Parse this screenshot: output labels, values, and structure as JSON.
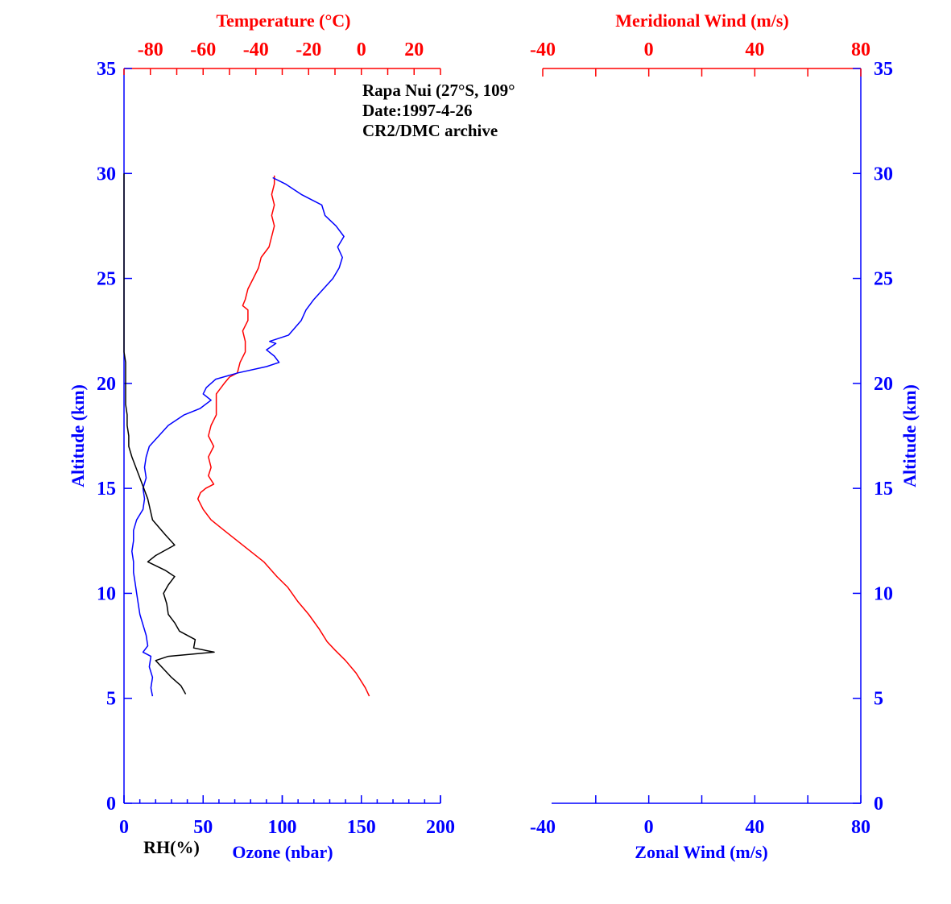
{
  "chart_data": [
    {
      "type": "line",
      "panel": "left",
      "annotation_lines": [
        "Rapa Nui (27°S, 109°",
        "Date:1997-4-26",
        "CR2/DMC archive"
      ],
      "ylabel": "Altitude (km)",
      "ylim": [
        0,
        35
      ],
      "yticks": [
        0,
        5,
        10,
        15,
        20,
        25,
        30,
        35
      ],
      "top_axis": {
        "label": "Temperature (°C)",
        "lim": [
          -90,
          30
        ],
        "ticks": [
          -80,
          -60,
          -40,
          -20,
          0,
          20
        ],
        "color": "#ff0000"
      },
      "bottom_axis": {
        "label": "Ozone (nbar)",
        "lim": [
          0,
          200
        ],
        "ticks": [
          0,
          50,
          100,
          150,
          200
        ],
        "color": "#0000ff"
      },
      "rh_label": "RH(%)",
      "series": [
        {
          "name": "Temperature",
          "axis": "top",
          "color": "#ff0000",
          "points": [
            [
              3.0,
              5.1
            ],
            [
              1.5,
              5.5
            ],
            [
              -2,
              6.2
            ],
            [
              -6,
              6.8
            ],
            [
              -10,
              7.3
            ],
            [
              -13,
              7.7
            ],
            [
              -16,
              8.3
            ],
            [
              -20,
              9.0
            ],
            [
              -24,
              9.6
            ],
            [
              -28,
              10.3
            ],
            [
              -32,
              10.8
            ],
            [
              -37,
              11.5
            ],
            [
              -42,
              12.0
            ],
            [
              -47,
              12.5
            ],
            [
              -52,
              13.0
            ],
            [
              -57,
              13.5
            ],
            [
              -60,
              14.0
            ],
            [
              -62,
              14.5
            ],
            [
              -61,
              14.8
            ],
            [
              -59,
              15.0
            ],
            [
              -56,
              15.2
            ],
            [
              -58,
              15.6
            ],
            [
              -57,
              16.0
            ],
            [
              -58,
              16.5
            ],
            [
              -56,
              17.0
            ],
            [
              -58,
              17.5
            ],
            [
              -57,
              18.0
            ],
            [
              -55,
              18.5
            ],
            [
              -55,
              19.0
            ],
            [
              -55,
              19.5
            ],
            [
              -52,
              20.0
            ],
            [
              -50,
              20.3
            ],
            [
              -47,
              20.5
            ],
            [
              -46,
              21.0
            ],
            [
              -44,
              21.5
            ],
            [
              -44,
              22.0
            ],
            [
              -45,
              22.5
            ],
            [
              -43,
              23.0
            ],
            [
              -43,
              23.5
            ],
            [
              -45,
              23.7
            ],
            [
              -44,
              24.0
            ],
            [
              -43,
              24.5
            ],
            [
              -41,
              25.0
            ],
            [
              -39,
              25.5
            ],
            [
              -38,
              26.0
            ],
            [
              -35,
              26.5
            ],
            [
              -34,
              27.0
            ],
            [
              -33,
              27.5
            ],
            [
              -34,
              28.0
            ],
            [
              -33,
              28.5
            ],
            [
              -34,
              29.0
            ],
            [
              -33,
              29.5
            ],
            [
              -33,
              29.9
            ]
          ]
        },
        {
          "name": "Ozone",
          "axis": "bottom",
          "color": "#0000ff",
          "points": [
            [
              18,
              5.1
            ],
            [
              17,
              5.5
            ],
            [
              18,
              6.0
            ],
            [
              16,
              6.5
            ],
            [
              17,
              7.0
            ],
            [
              12,
              7.2
            ],
            [
              15,
              7.5
            ],
            [
              14,
              8.0
            ],
            [
              12,
              8.5
            ],
            [
              10,
              9.0
            ],
            [
              9,
              9.5
            ],
            [
              8,
              10.0
            ],
            [
              7,
              10.5
            ],
            [
              6,
              11.0
            ],
            [
              6,
              11.5
            ],
            [
              5,
              12.0
            ],
            [
              6,
              12.5
            ],
            [
              6,
              13.0
            ],
            [
              8,
              13.5
            ],
            [
              12,
              14.0
            ],
            [
              13,
              14.5
            ],
            [
              12,
              15.0
            ],
            [
              14,
              15.5
            ],
            [
              13,
              16.0
            ],
            [
              14,
              16.5
            ],
            [
              16,
              17.0
            ],
            [
              22,
              17.5
            ],
            [
              28,
              18.0
            ],
            [
              38,
              18.5
            ],
            [
              48,
              18.8
            ],
            [
              55,
              19.2
            ],
            [
              50,
              19.5
            ],
            [
              52,
              19.8
            ],
            [
              58,
              20.2
            ],
            [
              72,
              20.5
            ],
            [
              90,
              20.8
            ],
            [
              98,
              21.0
            ],
            [
              95,
              21.3
            ],
            [
              90,
              21.6
            ],
            [
              96,
              21.9
            ],
            [
              92,
              22.0
            ],
            [
              104,
              22.3
            ],
            [
              112,
              23.0
            ],
            [
              115,
              23.5
            ],
            [
              120,
              24.0
            ],
            [
              126,
              24.5
            ],
            [
              132,
              25.0
            ],
            [
              136,
              25.5
            ],
            [
              138,
              26.0
            ],
            [
              135,
              26.5
            ],
            [
              139,
              27.0
            ],
            [
              134,
              27.5
            ],
            [
              127,
              28.0
            ],
            [
              125,
              28.5
            ],
            [
              112,
              29.0
            ],
            [
              102,
              29.5
            ],
            [
              94,
              29.8
            ]
          ]
        },
        {
          "name": "RH",
          "axis": "bottom",
          "color": "#000000",
          "points": [
            [
              39,
              5.2
            ],
            [
              36,
              5.6
            ],
            [
              30,
              6.0
            ],
            [
              25,
              6.4
            ],
            [
              20,
              6.8
            ],
            [
              28,
              7.0
            ],
            [
              57,
              7.2
            ],
            [
              44,
              7.4
            ],
            [
              45,
              7.8
            ],
            [
              35,
              8.2
            ],
            [
              32,
              8.6
            ],
            [
              28,
              9.0
            ],
            [
              27,
              9.5
            ],
            [
              25,
              10.0
            ],
            [
              28,
              10.4
            ],
            [
              32,
              10.8
            ],
            [
              26,
              11.1
            ],
            [
              15,
              11.5
            ],
            [
              20,
              11.8
            ],
            [
              32,
              12.3
            ],
            [
              26,
              12.8
            ],
            [
              18,
              13.5
            ],
            [
              15,
              14.5
            ],
            [
              10,
              15.5
            ],
            [
              5,
              16.5
            ],
            [
              3,
              17.0
            ],
            [
              3,
              17.5
            ],
            [
              2,
              18.0
            ],
            [
              2,
              18.5
            ],
            [
              1,
              19.0
            ],
            [
              1,
              20.0
            ],
            [
              1,
              21.0
            ],
            [
              0,
              21.5
            ],
            [
              0,
              21.8
            ],
            [
              0,
              22.5
            ],
            [
              0,
              25.0
            ],
            [
              0,
              30.0
            ]
          ]
        }
      ]
    },
    {
      "type": "line",
      "panel": "right",
      "ylabel": "Altitude (km)",
      "ylim": [
        0,
        35
      ],
      "yticks": [
        0,
        5,
        10,
        15,
        20,
        25,
        30,
        35
      ],
      "top_axis": {
        "label": "Meridional Wind (m/s)",
        "lim": [
          -40,
          80
        ],
        "ticks": [
          -40,
          0,
          40,
          80
        ],
        "color": "#ff0000"
      },
      "bottom_axis": {
        "label": "Zonal Wind (m/s)",
        "lim": [
          -40,
          80
        ],
        "ticks": [
          -40,
          0,
          40,
          80
        ],
        "color": "#0000ff"
      },
      "series": []
    }
  ]
}
